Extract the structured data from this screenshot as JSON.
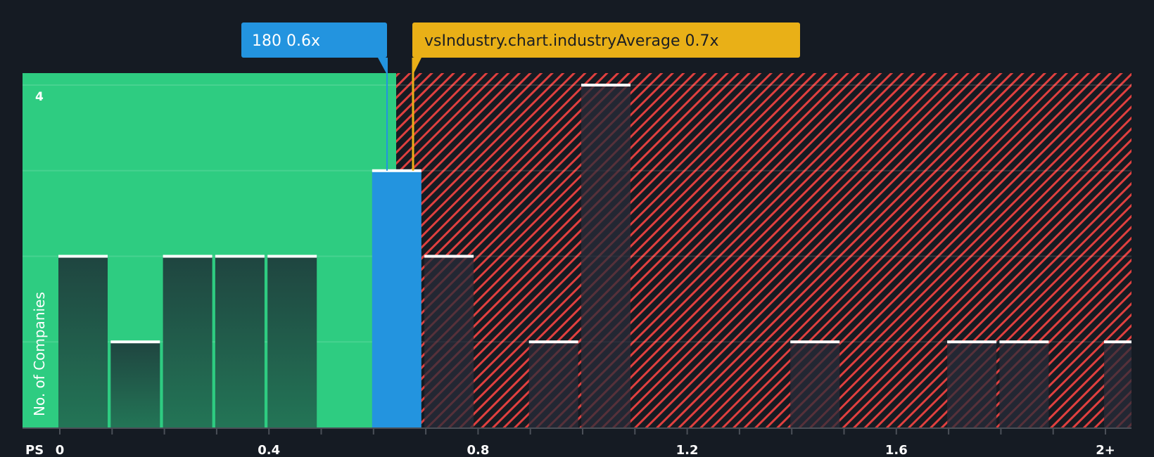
{
  "chart_data": {
    "type": "bar",
    "title": "",
    "xlabel": "PS",
    "ylabel": "No. of Companies",
    "x_ticks": [
      "0",
      "0.4",
      "0.8",
      "1.2",
      "1.6",
      "2+"
    ],
    "x_tick_values": [
      0,
      0.4,
      0.8,
      1.2,
      1.6,
      2.0
    ],
    "y_ticks": [
      "4"
    ],
    "ylim": [
      0,
      4
    ],
    "xlim": [
      0,
      2.05
    ],
    "bin_width": 0.1,
    "bins": [
      {
        "x_start": 0.0,
        "count": 2,
        "zone": "below"
      },
      {
        "x_start": 0.1,
        "count": 1,
        "zone": "below"
      },
      {
        "x_start": 0.2,
        "count": 2,
        "zone": "below"
      },
      {
        "x_start": 0.3,
        "count": 2,
        "zone": "below"
      },
      {
        "x_start": 0.4,
        "count": 2,
        "zone": "below"
      },
      {
        "x_start": 0.6,
        "count": 3,
        "zone": "company"
      },
      {
        "x_start": 0.7,
        "count": 2,
        "zone": "above"
      },
      {
        "x_start": 0.9,
        "count": 1,
        "zone": "above"
      },
      {
        "x_start": 1.0,
        "count": 4,
        "zone": "above"
      },
      {
        "x_start": 1.4,
        "count": 1,
        "zone": "above"
      },
      {
        "x_start": 1.7,
        "count": 1,
        "zone": "above"
      },
      {
        "x_start": 1.8,
        "count": 1,
        "zone": "above"
      },
      {
        "x_start": 2.0,
        "count": 1,
        "zone": "above"
      }
    ],
    "markers": [
      {
        "name": "company",
        "label": "180 0.6x",
        "value": 0.65,
        "color": "#2394df"
      },
      {
        "name": "industry_average",
        "label": "vsIndustry.chart.industryAverage 0.7x",
        "value": 0.705,
        "color": "#e9b017"
      }
    ],
    "zones": {
      "below_color": "#2ecc81",
      "above_hatch_color": "#e0403f",
      "split_value": 0.675
    },
    "grid": true,
    "legend": "none"
  },
  "colors": {
    "background": "#151b23",
    "green": "#2ecc81",
    "bar_dark": "#1f4a3f",
    "blue": "#2394df",
    "gold": "#e9b017",
    "hatch": "#e0403f",
    "axis": "#4a4f57",
    "text": "#ffffff",
    "text_dark": "#1b1e23"
  }
}
